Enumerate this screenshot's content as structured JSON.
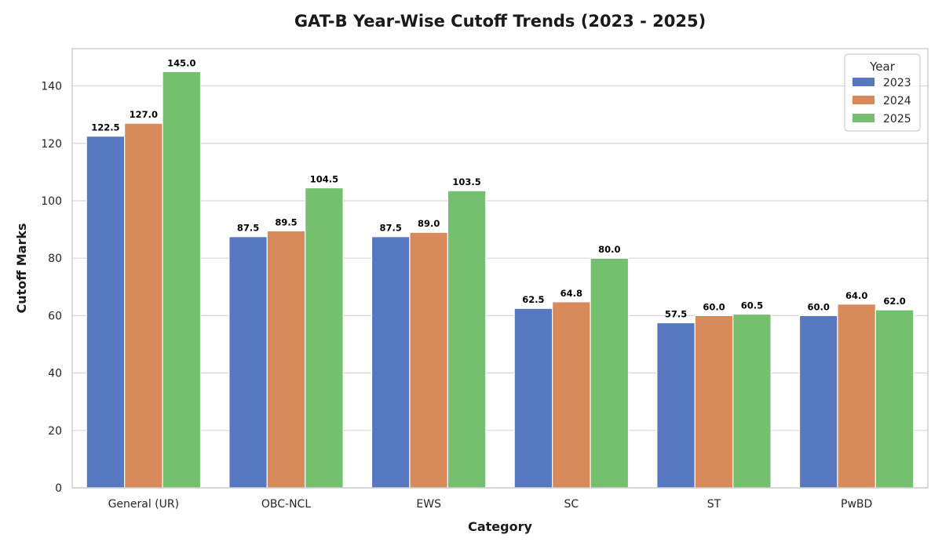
{
  "chart_data": {
    "type": "bar",
    "title": "GAT-B Year-Wise Cutoff Trends (2023 - 2025)",
    "xlabel": "Category",
    "ylabel": "Cutoff Marks",
    "categories": [
      "General (UR)",
      "OBC-NCL",
      "EWS",
      "SC",
      "ST",
      "PwBD"
    ],
    "series": [
      {
        "name": "2023",
        "color": "#5778c1",
        "values": [
          122.5,
          87.5,
          87.5,
          62.5,
          57.5,
          60.0
        ]
      },
      {
        "name": "2024",
        "color": "#d88a5b",
        "values": [
          127.0,
          89.5,
          89.0,
          64.8,
          60.0,
          64.0
        ]
      },
      {
        "name": "2025",
        "color": "#74c06f",
        "values": [
          145.0,
          104.5,
          103.5,
          80.0,
          60.5,
          62.0
        ]
      }
    ],
    "ylim": [
      0,
      153
    ],
    "yticks": [
      0,
      20,
      40,
      60,
      80,
      100,
      120,
      140
    ],
    "grid": true,
    "legend": {
      "title": "Year",
      "placement": "top-right"
    }
  }
}
